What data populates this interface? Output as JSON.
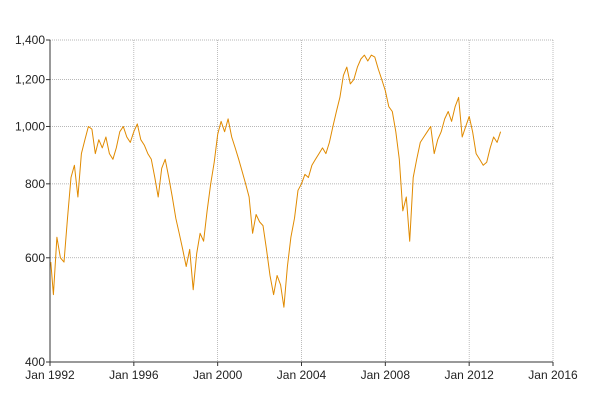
{
  "chart_data": {
    "type": "line",
    "title": "",
    "xlabel": "",
    "ylabel": "",
    "x_scale": "time",
    "y_scale": "log",
    "xlim": [
      "1992-01-01",
      "2016-01-01"
    ],
    "ylim": [
      400,
      1400
    ],
    "grid": true,
    "legend": "none",
    "x_ticks": [
      {
        "date": "1992-01-01",
        "label": "Jan 1992"
      },
      {
        "date": "1996-01-01",
        "label": "Jan 1996"
      },
      {
        "date": "2000-01-01",
        "label": "Jan 2000"
      },
      {
        "date": "2004-01-01",
        "label": "Jan 2004"
      },
      {
        "date": "2008-01-01",
        "label": "Jan 2008"
      },
      {
        "date": "2012-01-01",
        "label": "Jan 2012"
      },
      {
        "date": "2016-01-01",
        "label": "Jan 2016"
      }
    ],
    "y_ticks": [
      {
        "value": 400,
        "label": "400"
      },
      {
        "value": 600,
        "label": "600"
      },
      {
        "value": 800,
        "label": "800"
      },
      {
        "value": 1000,
        "label": "1,000"
      },
      {
        "value": 1200,
        "label": "1,200"
      },
      {
        "value": 1400,
        "label": "1,400"
      }
    ],
    "series": [
      {
        "color": "#e08a00",
        "points": [
          [
            "1992-01-15",
            590
          ],
          [
            "1992-03-01",
            520
          ],
          [
            "1992-05-01",
            650
          ],
          [
            "1992-07-01",
            600
          ],
          [
            "1992-09-01",
            590
          ],
          [
            "1992-11-01",
            700
          ],
          [
            "1993-01-01",
            820
          ],
          [
            "1993-03-01",
            860
          ],
          [
            "1993-05-01",
            760
          ],
          [
            "1993-07-01",
            900
          ],
          [
            "1993-09-01",
            950
          ],
          [
            "1993-11-01",
            1000
          ],
          [
            "1994-01-01",
            990
          ],
          [
            "1994-03-01",
            900
          ],
          [
            "1994-05-01",
            950
          ],
          [
            "1994-07-01",
            920
          ],
          [
            "1994-09-01",
            960
          ],
          [
            "1994-11-01",
            900
          ],
          [
            "1995-01-01",
            880
          ],
          [
            "1995-03-01",
            920
          ],
          [
            "1995-05-01",
            980
          ],
          [
            "1995-07-01",
            1000
          ],
          [
            "1995-09-01",
            960
          ],
          [
            "1995-11-01",
            940
          ],
          [
            "1996-01-01",
            980
          ],
          [
            "1996-03-01",
            1010
          ],
          [
            "1996-05-01",
            950
          ],
          [
            "1996-07-01",
            930
          ],
          [
            "1996-09-01",
            900
          ],
          [
            "1996-11-01",
            880
          ],
          [
            "1997-01-01",
            820
          ],
          [
            "1997-03-01",
            760
          ],
          [
            "1997-05-01",
            850
          ],
          [
            "1997-07-01",
            880
          ],
          [
            "1997-09-01",
            820
          ],
          [
            "1997-11-01",
            760
          ],
          [
            "1998-01-01",
            700
          ],
          [
            "1998-03-01",
            660
          ],
          [
            "1998-05-01",
            620
          ],
          [
            "1998-07-01",
            580
          ],
          [
            "1998-09-01",
            620
          ],
          [
            "1998-11-01",
            530
          ],
          [
            "1999-01-01",
            610
          ],
          [
            "1999-03-01",
            660
          ],
          [
            "1999-05-01",
            640
          ],
          [
            "1999-07-01",
            720
          ],
          [
            "1999-09-01",
            800
          ],
          [
            "1999-11-01",
            870
          ],
          [
            "2000-01-01",
            970
          ],
          [
            "2000-03-01",
            1020
          ],
          [
            "2000-05-01",
            980
          ],
          [
            "2000-07-01",
            1030
          ],
          [
            "2000-09-01",
            960
          ],
          [
            "2000-11-01",
            920
          ],
          [
            "2001-01-01",
            880
          ],
          [
            "2001-03-01",
            840
          ],
          [
            "2001-05-01",
            800
          ],
          [
            "2001-07-01",
            760
          ],
          [
            "2001-09-01",
            660
          ],
          [
            "2001-11-01",
            710
          ],
          [
            "2002-01-01",
            690
          ],
          [
            "2002-03-01",
            680
          ],
          [
            "2002-05-01",
            620
          ],
          [
            "2002-07-01",
            560
          ],
          [
            "2002-09-01",
            520
          ],
          [
            "2002-11-01",
            560
          ],
          [
            "2003-01-01",
            540
          ],
          [
            "2003-03-01",
            495
          ],
          [
            "2003-05-01",
            580
          ],
          [
            "2003-07-01",
            650
          ],
          [
            "2003-09-01",
            700
          ],
          [
            "2003-11-01",
            780
          ],
          [
            "2004-01-01",
            800
          ],
          [
            "2004-03-01",
            830
          ],
          [
            "2004-05-01",
            820
          ],
          [
            "2004-07-01",
            860
          ],
          [
            "2004-09-01",
            880
          ],
          [
            "2004-11-01",
            900
          ],
          [
            "2005-01-01",
            920
          ],
          [
            "2005-03-01",
            900
          ],
          [
            "2005-05-01",
            940
          ],
          [
            "2005-07-01",
            1000
          ],
          [
            "2005-09-01",
            1060
          ],
          [
            "2005-11-01",
            1120
          ],
          [
            "2006-01-01",
            1220
          ],
          [
            "2006-03-01",
            1260
          ],
          [
            "2006-05-01",
            1180
          ],
          [
            "2006-07-01",
            1200
          ],
          [
            "2006-09-01",
            1260
          ],
          [
            "2006-11-01",
            1300
          ],
          [
            "2007-01-01",
            1320
          ],
          [
            "2007-03-01",
            1290
          ],
          [
            "2007-05-01",
            1320
          ],
          [
            "2007-07-01",
            1310
          ],
          [
            "2007-09-01",
            1250
          ],
          [
            "2007-11-01",
            1200
          ],
          [
            "2008-01-01",
            1150
          ],
          [
            "2008-03-01",
            1080
          ],
          [
            "2008-05-01",
            1060
          ],
          [
            "2008-07-01",
            980
          ],
          [
            "2008-09-01",
            880
          ],
          [
            "2008-11-01",
            720
          ],
          [
            "2009-01-01",
            760
          ],
          [
            "2009-03-01",
            640
          ],
          [
            "2009-05-01",
            820
          ],
          [
            "2009-07-01",
            880
          ],
          [
            "2009-09-01",
            940
          ],
          [
            "2009-11-01",
            960
          ],
          [
            "2010-01-01",
            980
          ],
          [
            "2010-03-01",
            1000
          ],
          [
            "2010-05-01",
            900
          ],
          [
            "2010-07-01",
            950
          ],
          [
            "2010-09-01",
            980
          ],
          [
            "2010-11-01",
            1030
          ],
          [
            "2011-01-01",
            1060
          ],
          [
            "2011-03-01",
            1020
          ],
          [
            "2011-05-01",
            1080
          ],
          [
            "2011-07-01",
            1120
          ],
          [
            "2011-09-01",
            960
          ],
          [
            "2011-11-01",
            1000
          ],
          [
            "2012-01-01",
            1040
          ],
          [
            "2012-03-01",
            980
          ],
          [
            "2012-05-01",
            900
          ],
          [
            "2012-07-01",
            880
          ],
          [
            "2012-09-01",
            860
          ],
          [
            "2012-11-01",
            870
          ],
          [
            "2013-01-01",
            920
          ],
          [
            "2013-03-01",
            960
          ],
          [
            "2013-05-01",
            940
          ],
          [
            "2013-07-01",
            980
          ]
        ]
      }
    ]
  }
}
